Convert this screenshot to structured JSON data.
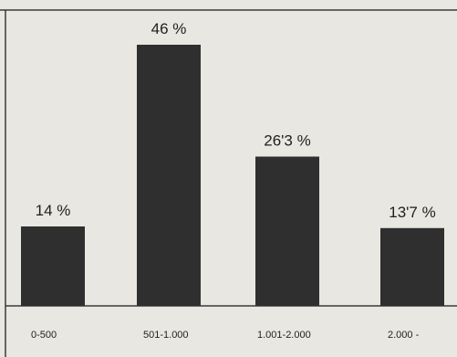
{
  "chart_data": {
    "type": "bar",
    "categories": [
      "0-500",
      "501-1.000",
      "1.001-2.000",
      "2.000 -"
    ],
    "values": [
      14,
      46,
      26.3,
      13.7
    ],
    "value_labels": [
      "14 %",
      "46 %",
      "26'3 %",
      "13'7 %"
    ],
    "title": "",
    "xlabel": "",
    "ylabel": "",
    "ylim": [
      0,
      50
    ],
    "grid": false,
    "legend": "none",
    "colors": {
      "bar": "#2f2f2f",
      "background": "#e9e7e2",
      "frame": "#3a3a3a",
      "text": "#1f1f1f"
    }
  }
}
